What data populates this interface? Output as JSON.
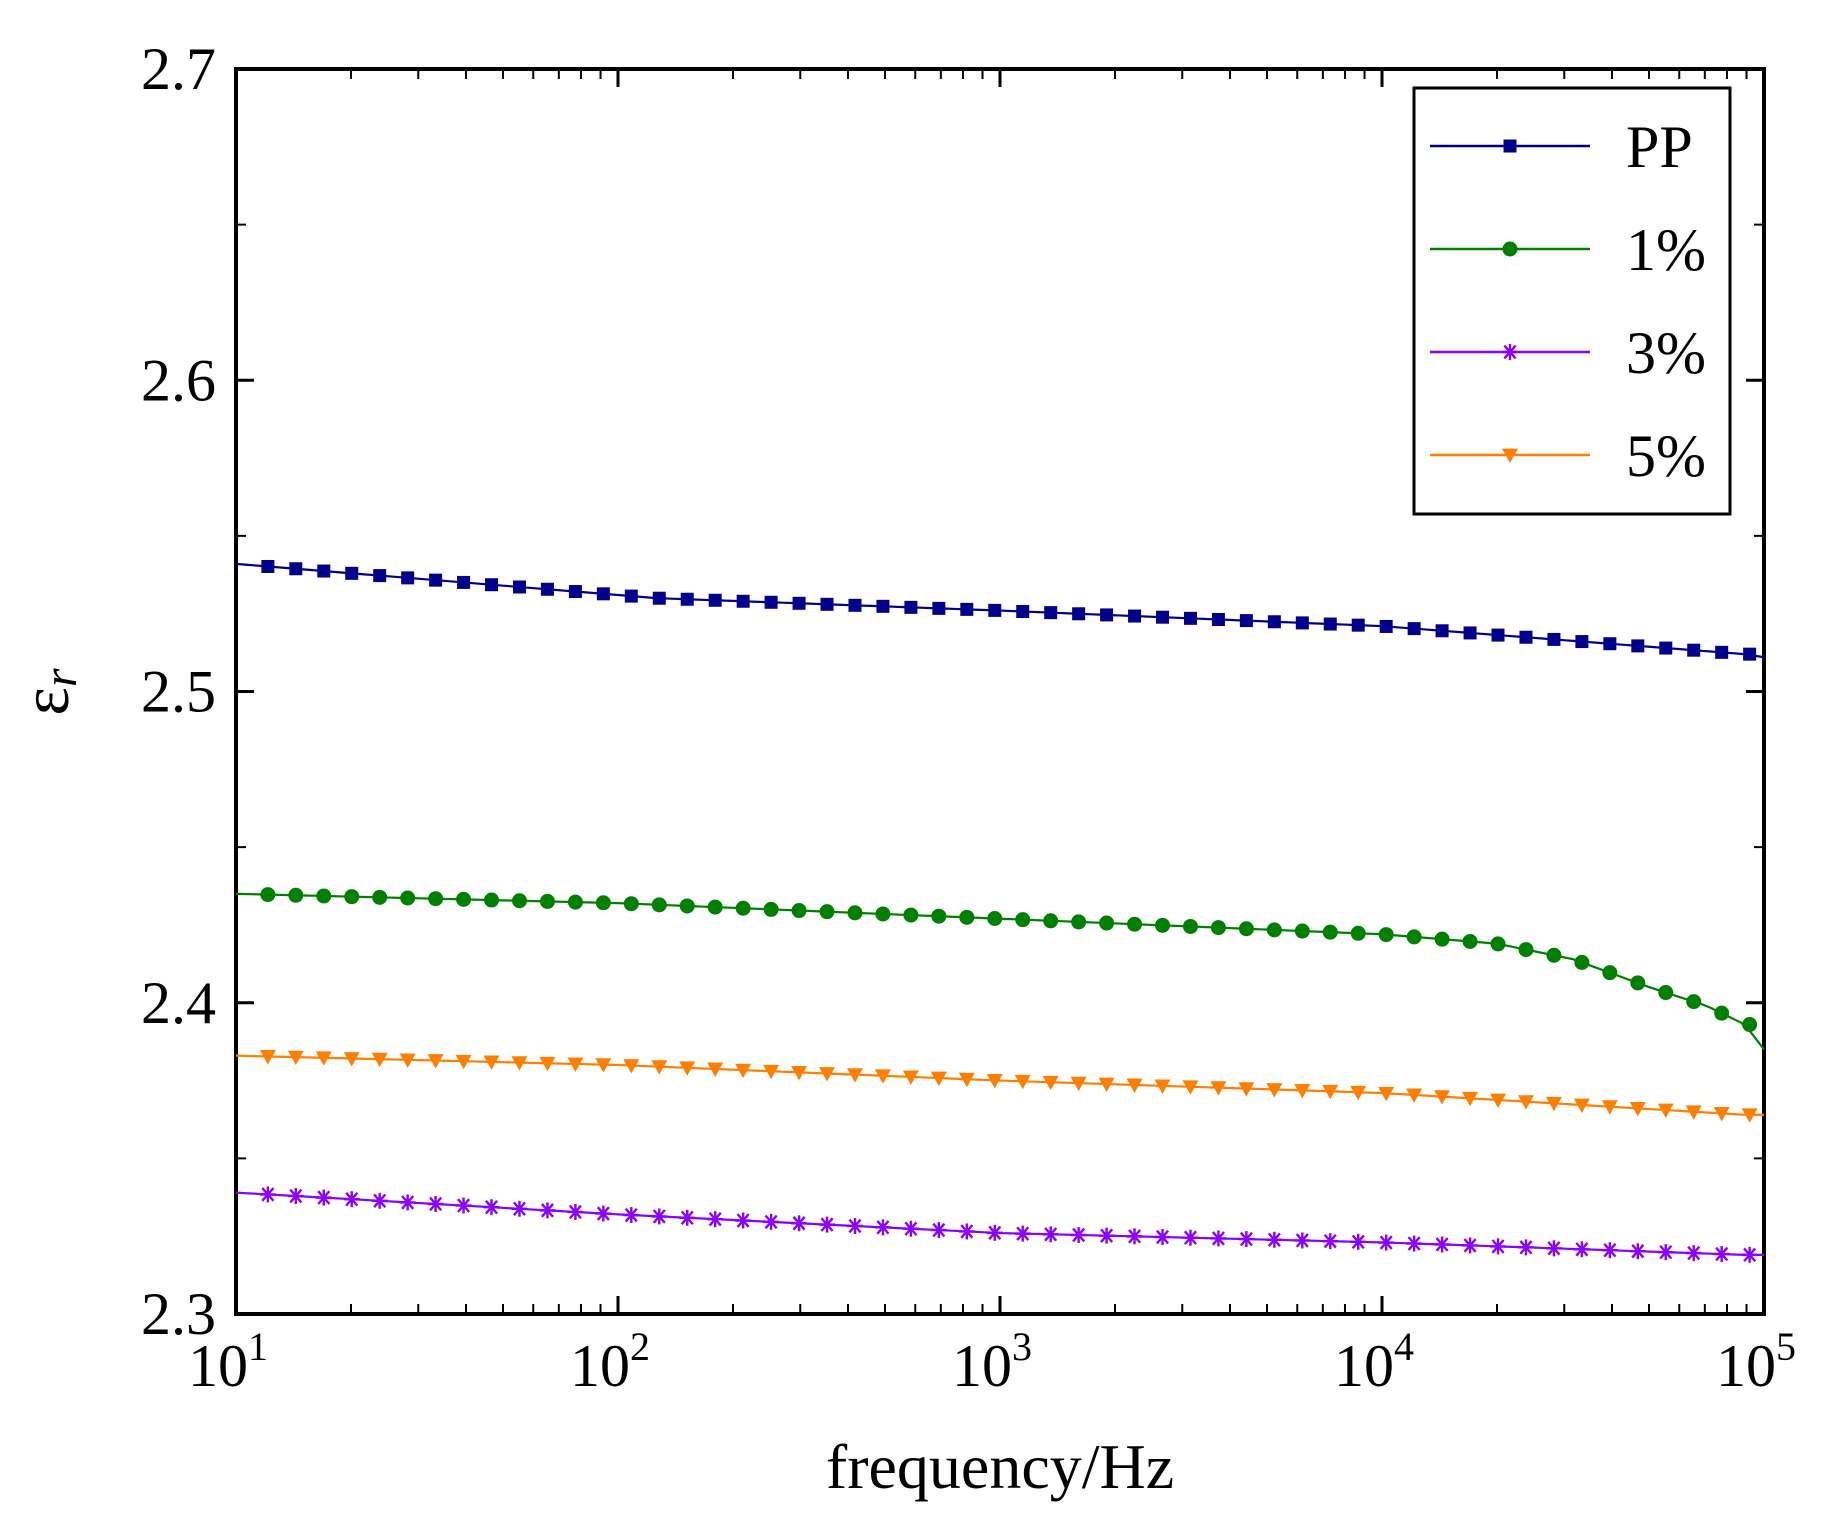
{
  "chart_data": {
    "type": "line",
    "title": "",
    "xlabel": "frequency/Hz",
    "ylabel": "ε",
    "ylabel_subscript": "r",
    "xscale": "log",
    "xlim": [
      10,
      100000
    ],
    "ylim": [
      2.3,
      2.7
    ],
    "grid": false,
    "legend_position": "top-right",
    "x_ticks": [
      {
        "base": "10",
        "exp": "1"
      },
      {
        "base": "10",
        "exp": "2"
      },
      {
        "base": "10",
        "exp": "3"
      },
      {
        "base": "10",
        "exp": "4"
      },
      {
        "base": "10",
        "exp": "5"
      }
    ],
    "x_tick_values": [
      10,
      100,
      1000,
      10000,
      100000
    ],
    "y_ticks": [
      "2.3",
      "2.4",
      "2.5",
      "2.6",
      "2.7"
    ],
    "y_tick_values": [
      2.3,
      2.4,
      2.5,
      2.6,
      2.7
    ],
    "series": [
      {
        "name": "PP",
        "color": "#00008B",
        "marker": "square",
        "x_log": [
          1.0,
          2.1,
          3.0,
          4.0,
          4.95
        ],
        "y_anchor": [
          2.541,
          2.53,
          2.526,
          2.521,
          2.512
        ],
        "y_at_xmax": 2.511
      },
      {
        "name": "1%",
        "color": "#008000",
        "marker": "circle",
        "x_log": [
          1.0,
          2.0,
          3.0,
          4.0,
          4.3,
          4.5,
          4.7,
          4.85,
          4.95
        ],
        "y_anchor": [
          2.435,
          2.432,
          2.427,
          2.422,
          2.419,
          2.414,
          2.405,
          2.399,
          2.393
        ],
        "y_at_xmax": 2.385
      },
      {
        "name": "3%",
        "color": "#8B00FF",
        "marker": "star",
        "x_log": [
          1.0,
          2.0,
          3.0,
          4.0,
          4.95
        ],
        "y_anchor": [
          2.339,
          2.332,
          2.326,
          2.323,
          2.319
        ],
        "y_at_xmax": 2.319
      },
      {
        "name": "5%",
        "color": "#FF7F00",
        "marker": "triangle-down",
        "x_log": [
          1.0,
          2.0,
          3.0,
          4.0,
          4.95
        ],
        "y_anchor": [
          2.383,
          2.38,
          2.375,
          2.371,
          2.364
        ],
        "y_at_xmax": 2.364
      }
    ],
    "marker_count": 54
  }
}
